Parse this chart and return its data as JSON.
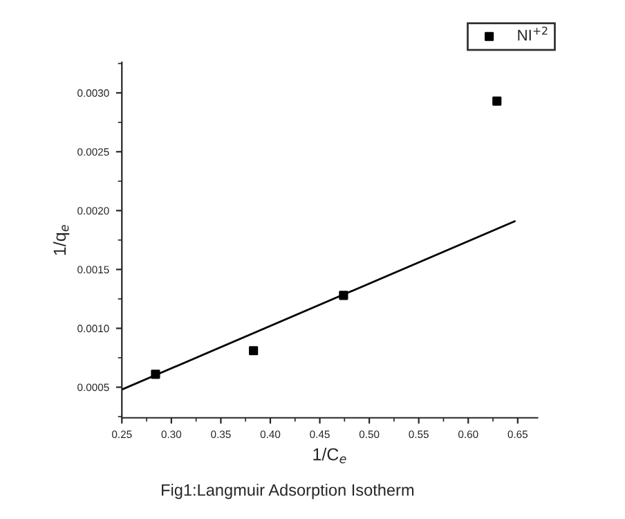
{
  "chart_data": {
    "type": "scatter",
    "xlabel": "1/C$_{e}$",
    "ylabel": "1/q$_{e}$",
    "annotations": [
      "Fig1:Langmuir Adsorption Isotherm"
    ],
    "series": [
      {
        "name": "NI$^{+2}$",
        "color": "#000000",
        "marker": "square",
        "x": [
          0.284,
          0.383,
          0.474,
          0.629
        ],
        "values": [
          0.00061,
          0.00081,
          0.00128,
          0.00293
        ]
      },
      {
        "type": "line",
        "color": "#000000",
        "marker": "none",
        "line_style": "solid",
        "x": [
          0.25,
          0.647
        ],
        "values": [
          0.00048,
          0.00191
        ]
      }
    ],
    "xlim": [
      0.25,
      0.67
    ],
    "ylim": [
      0.00024,
      0.00326
    ],
    "xticks": [
      {
        "value": 0.25,
        "label": "0.25"
      },
      {
        "value": 0.3,
        "label": "0.30"
      },
      {
        "value": 0.35,
        "label": "0.35"
      },
      {
        "value": 0.4,
        "label": "0.40"
      },
      {
        "value": 0.45,
        "label": "0.45"
      },
      {
        "value": 0.5,
        "label": "0.50"
      },
      {
        "value": 0.55,
        "label": "0.55"
      },
      {
        "value": 0.6,
        "label": "0.60"
      },
      {
        "value": 0.65,
        "label": "0.65"
      }
    ],
    "yticks": [
      {
        "value": 0.0005,
        "label": "0.0005"
      },
      {
        "value": 0.001,
        "label": "0.0010"
      },
      {
        "value": 0.0015,
        "label": "0.0015"
      },
      {
        "value": 0.002,
        "label": "0.0020"
      },
      {
        "value": 0.0025,
        "label": "0.0025"
      },
      {
        "value": 0.003,
        "label": "0.0030"
      }
    ],
    "grid": false,
    "legend": "top right"
  }
}
